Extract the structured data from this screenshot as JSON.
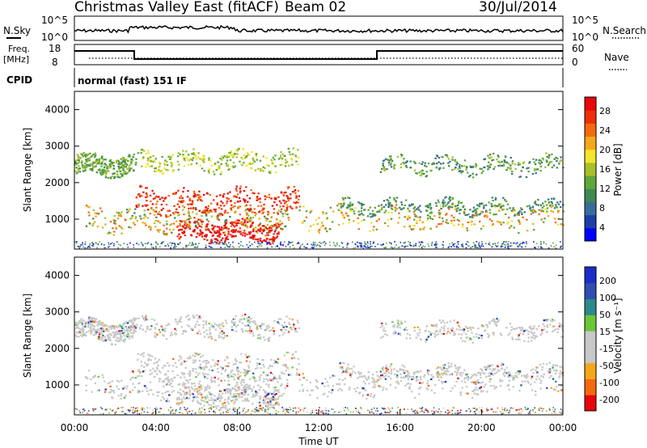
{
  "header": {
    "title": "Christmas Valley East (fitACF)",
    "beam": "Beam 02",
    "date": "30/Jul/2014"
  },
  "strips": {
    "nsky_label": "N.Sky",
    "nsky_ticks": [
      "10^5",
      "10^0"
    ],
    "nsearch_label": "N.Search",
    "nsearch_ticks": [
      "10^5",
      "10^0"
    ],
    "freq_label_1": "Freq.",
    "freq_label_2": "[MHz]",
    "freq_ticks": [
      "18",
      "8"
    ],
    "nave_label": "Nave",
    "nave_ticks": [
      "60",
      "0"
    ],
    "cpid_label": "CPID",
    "cpid_value": "normal (fast) 151 IF"
  },
  "chart_data": [
    {
      "type": "heatmap",
      "name": "power",
      "ylabel": "Slant Range [km]",
      "y_ticks": [
        "4000",
        "3000",
        "2000",
        "1000"
      ],
      "ylim": [
        180,
        4500
      ],
      "xlim": [
        0,
        24
      ],
      "colorbar_label": "Power [dB]",
      "colorbar_ticks": [
        "28",
        "24",
        "20",
        "16",
        "12",
        "8",
        "4"
      ],
      "colorbar_colors": [
        "#0000ff",
        "#1e3ea8",
        "#3a6e9a",
        "#3f8a52",
        "#5fa83b",
        "#a8c02a",
        "#f2e52a",
        "#f6a81c",
        "#f46a10",
        "#ee2f0a",
        "#e8070a"
      ],
      "colorbar_range": [
        0,
        30
      ]
    },
    {
      "type": "heatmap",
      "name": "velocity",
      "ylabel": "Slant Range [km]",
      "y_ticks": [
        "4000",
        "3000",
        "2000",
        "1000"
      ],
      "ylim": [
        180,
        4500
      ],
      "xlim": [
        0,
        24
      ],
      "xlabel": "Time UT",
      "x_ticks": [
        "00:00",
        "04:00",
        "08:00",
        "12:00",
        "16:00",
        "20:00",
        "00:00"
      ],
      "colorbar_label": "Velocity [m s⁻¹]",
      "colorbar_ticks": [
        "200",
        "100",
        "50",
        "15",
        "-15",
        "-50",
        "-100",
        "-200"
      ],
      "colorbar_colors": [
        "#e8070a",
        "#f46a10",
        "#f6a81c",
        "#c8c8c8",
        "#c8c8c8",
        "#6cc63a",
        "#2d8a8a",
        "#2e4fb0",
        "#1c2ec8"
      ]
    }
  ]
}
